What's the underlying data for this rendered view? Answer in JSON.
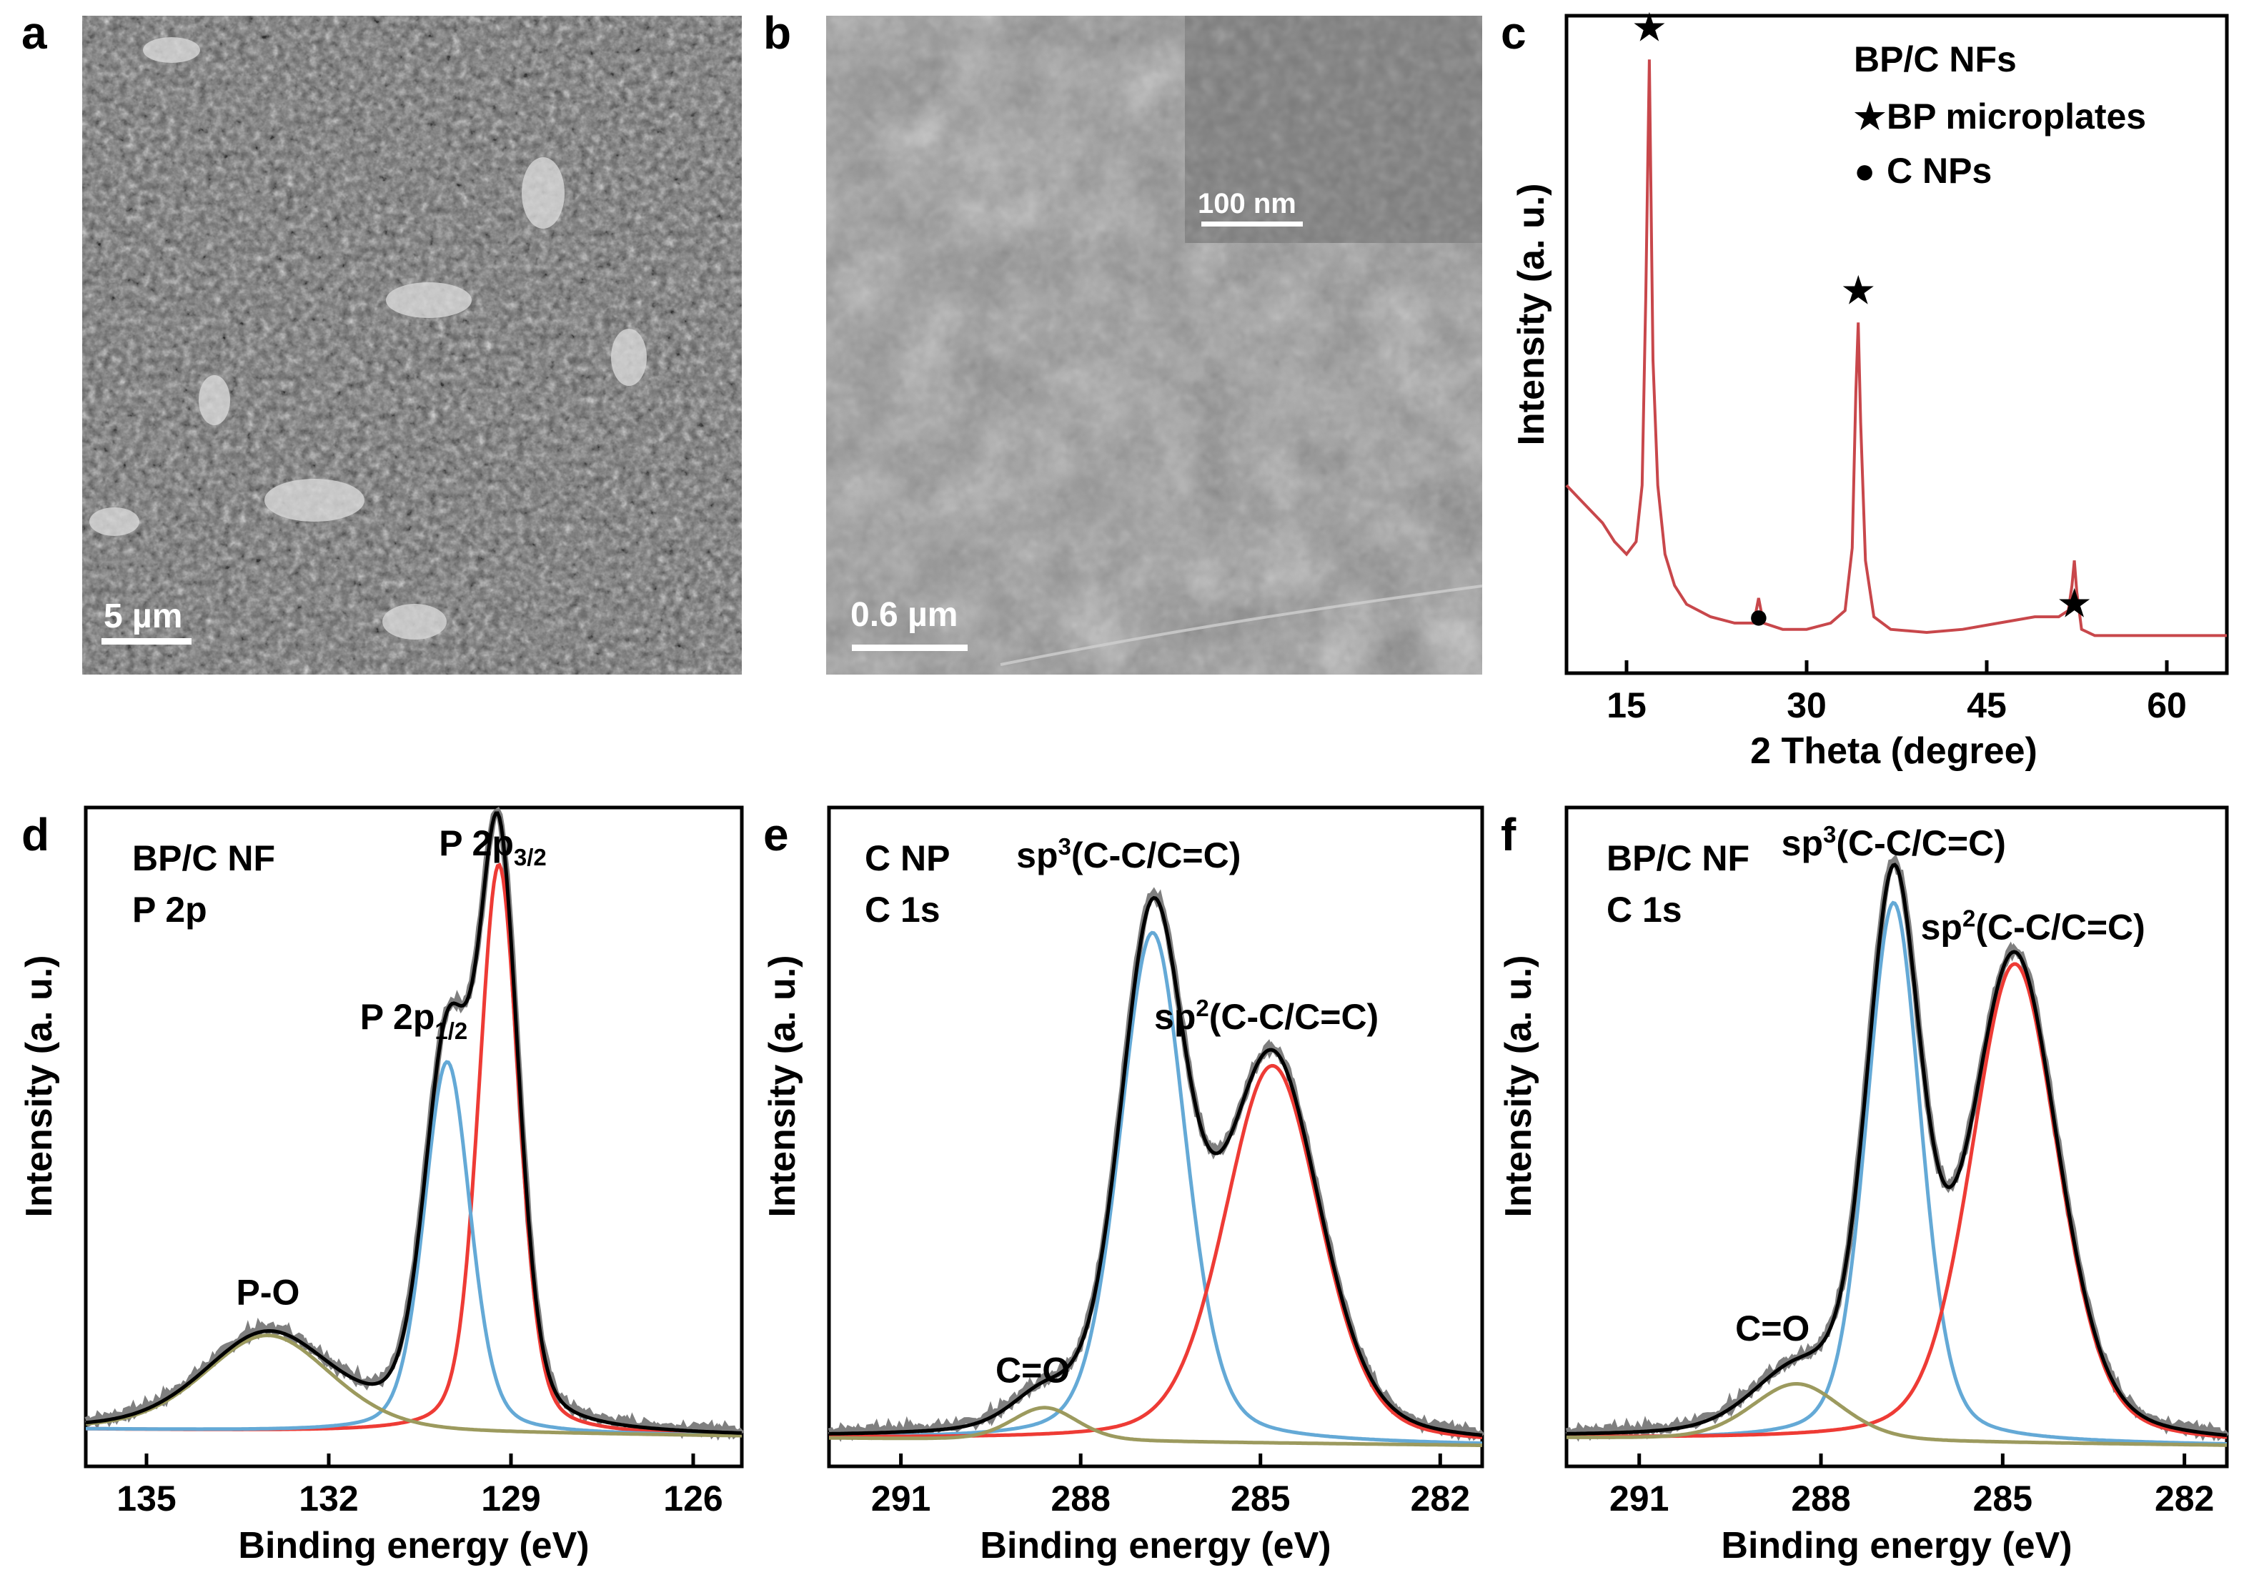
{
  "panels": {
    "a": {
      "letter": "a",
      "scale_bar": "5 µm"
    },
    "b": {
      "letter": "b",
      "scale_bar": "0.6 µm",
      "inset_scale_bar": "100 nm"
    },
    "c": {
      "letter": "c"
    },
    "d": {
      "letter": "d"
    },
    "e": {
      "letter": "e"
    },
    "f": {
      "letter": "f"
    }
  },
  "colors": {
    "xrd": "#c8474b",
    "raw": "#7f7f7f",
    "envelope": "#000000",
    "red_peak": "#ee3b35",
    "blue_peak": "#64a9d6",
    "olive_peak": "#9c9a5e"
  },
  "chart_data": [
    {
      "id": "c",
      "type": "line",
      "title": "",
      "xlabel": "2 Theta (degree)",
      "ylabel": "Intensity (a. u.)",
      "xlim": [
        10,
        65
      ],
      "ylim": [
        0,
        1.05
      ],
      "xticks": [
        "15",
        "30",
        "45",
        "60"
      ],
      "xtick_values": [
        15,
        30,
        45,
        60
      ],
      "legend": {
        "title": "BP/C NFs",
        "entries": [
          {
            "symbol": "★",
            "label": "BP microplates"
          },
          {
            "symbol": "●",
            "label": "C NPs"
          }
        ]
      },
      "peaks": [
        {
          "x": 16.9,
          "y": 0.98,
          "marker": "★"
        },
        {
          "x": 26.0,
          "y": 0.04,
          "marker": "●"
        },
        {
          "x": 34.3,
          "y": 0.56,
          "marker": "★"
        },
        {
          "x": 52.3,
          "y": 0.06,
          "marker": "★"
        }
      ],
      "series": [
        {
          "name": "BP/C NFs",
          "color": "#c8474b",
          "x": [
            10,
            11,
            12,
            13,
            14,
            15,
            15.8,
            16.3,
            16.6,
            16.9,
            17.2,
            17.6,
            18.2,
            19,
            20,
            22,
            24,
            25.6,
            26,
            26.4,
            28,
            30,
            32,
            33.2,
            33.8,
            34.1,
            34.3,
            34.5,
            34.9,
            35.6,
            37,
            40,
            43,
            46,
            49,
            51,
            51.8,
            52.1,
            52.3,
            52.5,
            52.9,
            54,
            57,
            60,
            63,
            65
          ],
          "y": [
            0.3,
            0.28,
            0.26,
            0.24,
            0.21,
            0.19,
            0.21,
            0.3,
            0.6,
            0.98,
            0.5,
            0.3,
            0.19,
            0.14,
            0.11,
            0.09,
            0.08,
            0.08,
            0.12,
            0.08,
            0.07,
            0.07,
            0.08,
            0.1,
            0.2,
            0.45,
            0.56,
            0.4,
            0.18,
            0.09,
            0.07,
            0.065,
            0.07,
            0.08,
            0.09,
            0.09,
            0.1,
            0.14,
            0.18,
            0.13,
            0.07,
            0.06,
            0.06,
            0.06,
            0.06,
            0.06
          ]
        }
      ]
    },
    {
      "id": "d",
      "type": "line",
      "xlabel": "Binding energy (eV)",
      "ylabel": "Intensity (a. u.)",
      "xlim": [
        136,
        125.2
      ],
      "ylim": [
        0,
        1.1
      ],
      "xticks": [
        "135",
        "132",
        "129",
        "126"
      ],
      "xtick_values": [
        135,
        132,
        129,
        126
      ],
      "sample_label": [
        "BP/C NF",
        "P 2p"
      ],
      "baseline": 0.05,
      "components": [
        {
          "name": "P 2p3/2",
          "center": 129.2,
          "amp": 0.95,
          "width": 0.33,
          "color": "#ee3b35"
        },
        {
          "name": "P 2p1/2",
          "center": 130.05,
          "amp": 0.62,
          "width": 0.38,
          "color": "#64a9d6"
        },
        {
          "name": "P-O",
          "center": 133.0,
          "amp": 0.16,
          "width": 1.05,
          "color": "#9c9a5e"
        }
      ],
      "annotations": [
        {
          "text": "P 2p",
          "sub": "3/2",
          "x": 129.3,
          "y": 1.02
        },
        {
          "text": "P 2p",
          "sub": "1/2",
          "x": 130.6,
          "y": 0.73
        },
        {
          "text": "P-O",
          "x": 133.0,
          "y": 0.27
        }
      ]
    },
    {
      "id": "e",
      "type": "line",
      "xlabel": "Binding energy (eV)",
      "ylabel": "Intensity (a. u.)",
      "xlim": [
        292.2,
        281.3
      ],
      "ylim": [
        0,
        1.1
      ],
      "xticks": [
        "291",
        "288",
        "285",
        "282"
      ],
      "xtick_values": [
        291,
        288,
        285,
        282
      ],
      "sample_label": [
        "C NP",
        "C 1s"
      ],
      "baseline": 0.035,
      "components": [
        {
          "name": "sp3(C-C/C=C)",
          "center": 286.8,
          "amp": 0.85,
          "width": 0.55,
          "color": "#64a9d6"
        },
        {
          "name": "sp2(C-C/C=C)",
          "center": 284.8,
          "amp": 0.63,
          "width": 0.8,
          "color": "#ee3b35"
        },
        {
          "name": "C=O",
          "center": 288.6,
          "amp": 0.055,
          "width": 0.55,
          "color": "#9c9a5e"
        }
      ],
      "annotations": [
        {
          "text": "sp",
          "sup": "3",
          "tail": "(C-C/C=C)",
          "x": 287.2,
          "y": 1.0
        },
        {
          "text": "sp",
          "sup": "2",
          "tail": "(C-C/C=C)",
          "x": 284.9,
          "y": 0.73
        },
        {
          "text": "C=O",
          "x": 288.8,
          "y": 0.14
        }
      ]
    },
    {
      "id": "f",
      "type": "line",
      "xlabel": "Binding energy (eV)",
      "ylabel": "Intensity (a. u.)",
      "xlim": [
        292.2,
        281.3
      ],
      "ylim": [
        0,
        1.1
      ],
      "xticks": [
        "291",
        "288",
        "285",
        "282"
      ],
      "xtick_values": [
        291,
        288,
        285,
        282
      ],
      "sample_label": [
        "BP/C NF",
        "C 1s"
      ],
      "baseline": 0.035,
      "components": [
        {
          "name": "sp3(C-C/C=C)",
          "center": 286.8,
          "amp": 0.9,
          "width": 0.45,
          "color": "#64a9d6"
        },
        {
          "name": "sp2(C-C/C=C)",
          "center": 284.8,
          "amp": 0.8,
          "width": 0.72,
          "color": "#ee3b35"
        },
        {
          "name": "C=O",
          "center": 288.4,
          "amp": 0.095,
          "width": 0.75,
          "color": "#9c9a5e"
        }
      ],
      "annotations": [
        {
          "text": "sp",
          "sup": "3",
          "tail": "(C-C/C=C)",
          "x": 286.8,
          "y": 1.02
        },
        {
          "text": "sp",
          "sup": "2",
          "tail": "(C-C/C=C)",
          "x": 284.5,
          "y": 0.88
        },
        {
          "text": "C=O",
          "x": 288.8,
          "y": 0.21
        }
      ]
    }
  ]
}
